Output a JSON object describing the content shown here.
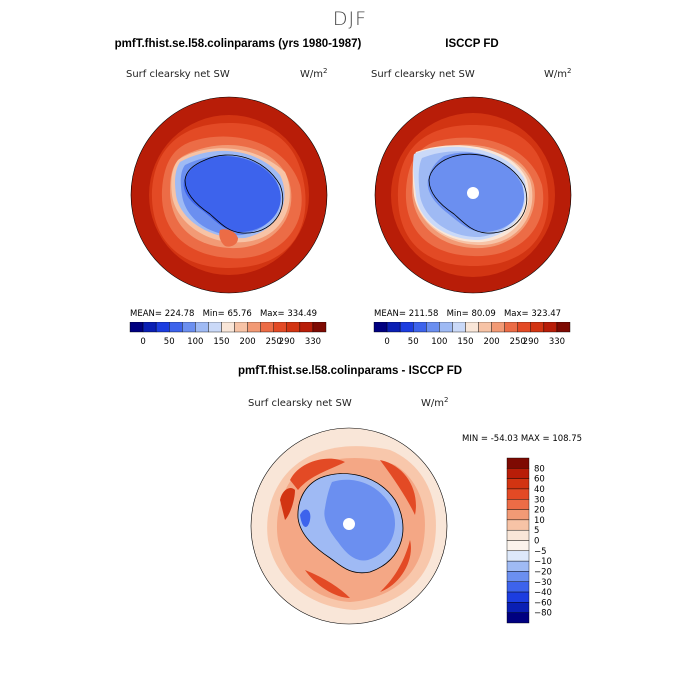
{
  "figure": {
    "title": "DJF"
  },
  "panels": [
    {
      "id": "model",
      "title": "pmfT.fhist.se.l58.colinparams (yrs 1980-1987)",
      "variable": "Surf clearsky net SW",
      "units_base": "W/m",
      "units_exp": "2",
      "stats": {
        "mean_label": "MEAN=",
        "mean": "224.78",
        "min_label": "Min=",
        "min": "65.76",
        "max_label": "Max=",
        "max": "334.49"
      }
    },
    {
      "id": "obs",
      "title": "ISCCP FD",
      "variable": "Surf clearsky net SW",
      "units_base": "W/m",
      "units_exp": "2",
      "stats": {
        "mean_label": "MEAN=",
        "mean": "211.58",
        "min_label": "Min=",
        "min": "80.09",
        "max_label": "Max=",
        "max": "323.47"
      }
    },
    {
      "id": "diff",
      "title": "pmfT.fhist.se.l58.colinparams - ISCCP FD",
      "variable": "Surf clearsky net SW",
      "units_base": "W/m",
      "units_exp": "2",
      "stats_text": "MIN = -54.03  MAX = 108.75"
    }
  ],
  "chart_data": [
    {
      "type": "heatmap",
      "projection": "south-polar-stereographic",
      "title": "pmfT.fhist.se.l58.colinparams (yrs 1980-1987)",
      "variable": "Surf clearsky net SW",
      "units": "W/m^2",
      "mean": 224.78,
      "min": 65.76,
      "max": 334.49,
      "colorbar_levels": [
        0,
        25,
        50,
        75,
        100,
        125,
        150,
        175,
        200,
        225,
        250,
        270,
        290,
        310,
        330
      ],
      "colorbar_tick_labels": [
        "0",
        "50",
        "100",
        "150",
        "200",
        "250",
        "290",
        "330"
      ],
      "colors": [
        "#000080",
        "#0a1fb4",
        "#1c3de0",
        "#3d63ec",
        "#6b8ff0",
        "#9fbaf4",
        "#cad9f8",
        "#f9e6d8",
        "#f7c3a6",
        "#f29a75",
        "#ec6c46",
        "#e34a25",
        "#d23412",
        "#b81d08",
        "#7e0a02"
      ]
    },
    {
      "type": "heatmap",
      "projection": "south-polar-stereographic",
      "title": "ISCCP FD",
      "variable": "Surf clearsky net SW",
      "units": "W/m^2",
      "mean": 211.58,
      "min": 80.09,
      "max": 323.47,
      "colorbar_levels": [
        0,
        25,
        50,
        75,
        100,
        125,
        150,
        175,
        200,
        225,
        250,
        270,
        290,
        310,
        330
      ],
      "colorbar_tick_labels": [
        "0",
        "50",
        "100",
        "150",
        "200",
        "250",
        "290",
        "330"
      ],
      "colors": [
        "#000080",
        "#0a1fb4",
        "#1c3de0",
        "#3d63ec",
        "#6b8ff0",
        "#9fbaf4",
        "#cad9f8",
        "#f9e6d8",
        "#f7c3a6",
        "#f29a75",
        "#ec6c46",
        "#e34a25",
        "#d23412",
        "#b81d08",
        "#7e0a02"
      ]
    },
    {
      "type": "heatmap",
      "projection": "south-polar-stereographic",
      "title": "pmfT.fhist.se.l58.colinparams - ISCCP FD",
      "variable": "Surf clearsky net SW",
      "units": "W/m^2",
      "min": -54.03,
      "max": 108.75,
      "colorbar_orientation": "vertical",
      "colorbar_tick_labels": [
        "80",
        "60",
        "40",
        "30",
        "20",
        "10",
        "5",
        "0",
        "−5",
        "−10",
        "−20",
        "−30",
        "−40",
        "−60",
        "−80"
      ],
      "colors": [
        "#7e0a02",
        "#b81d08",
        "#d23412",
        "#e34a25",
        "#ec6c46",
        "#f29a75",
        "#f7c3a6",
        "#f9e6d8",
        "#fbf3ec",
        "#dde8fa",
        "#9fbaf4",
        "#6b8ff0",
        "#3d63ec",
        "#1c3de0",
        "#0a1fb4",
        "#000080"
      ]
    }
  ]
}
